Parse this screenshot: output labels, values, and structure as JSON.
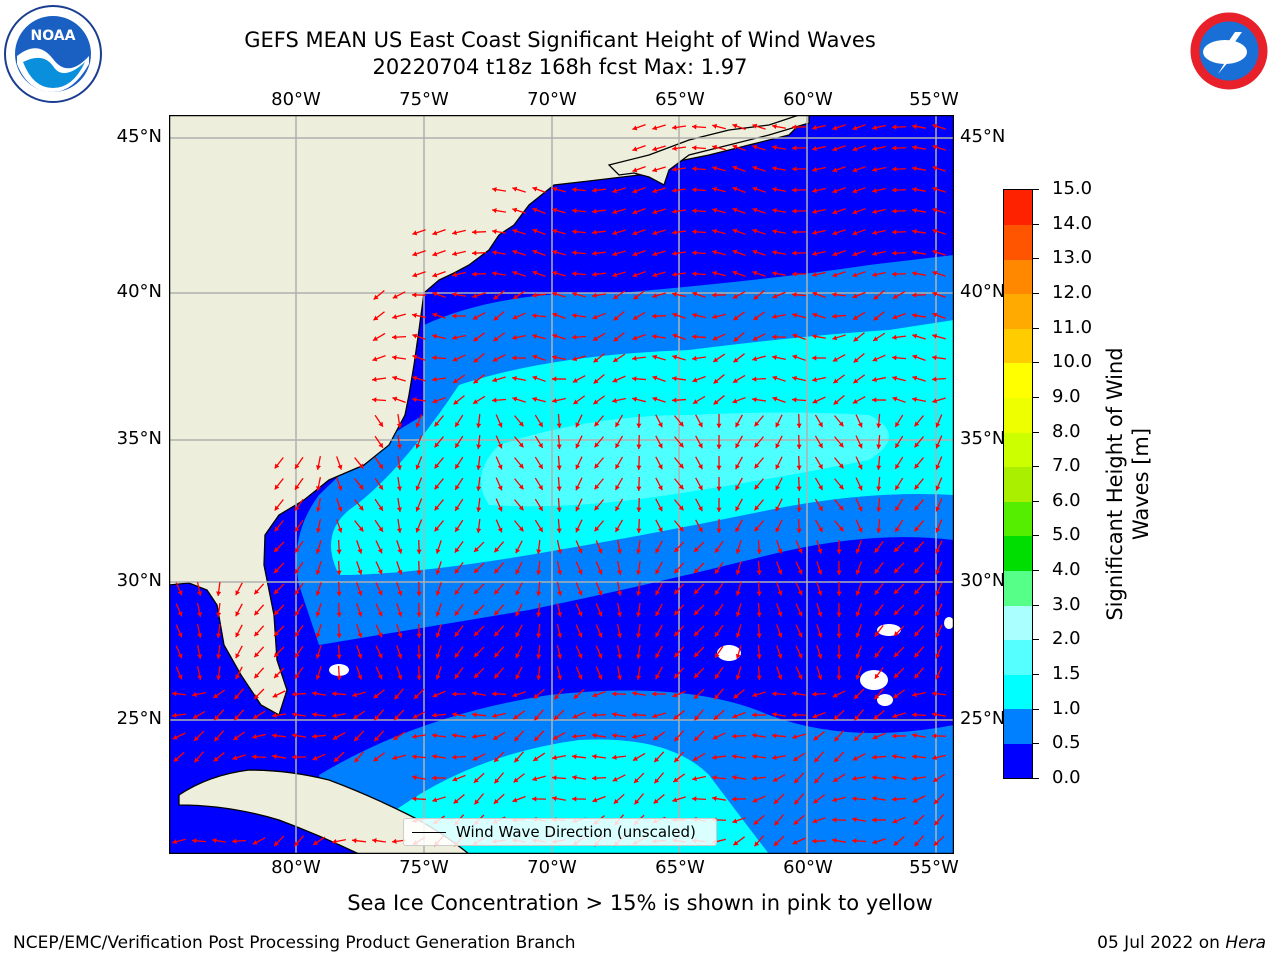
{
  "title_line1": "GEFS MEAN US East Coast Significant Height of Wind Waves",
  "title_line2": "20220704 t18z 168h fcst   Max: 1.97",
  "subtitle": "Sea Ice Concentration > 15% is shown in pink to yellow",
  "footer_left": "NCEP/EMC/Verification Post Processing Product Generation Branch",
  "footer_date": "05 Jul 2022 on ",
  "footer_machine": "Hera",
  "legend_label": "Wind Wave Direction (unscaled)",
  "colorbar_label": "Significant Height of Wind Waves [m]",
  "lon_labels": [
    "80°W",
    "75°W",
    "70°W",
    "65°W",
    "60°W",
    "55°W"
  ],
  "lat_labels": [
    "45°N",
    "40°N",
    "35°N",
    "30°N",
    "25°N"
  ],
  "colorbar_ticks": [
    "0.0",
    "0.5",
    "1.0",
    "1.5",
    "2.0",
    "3.0",
    "4.0",
    "5.0",
    "6.0",
    "7.0",
    "8.0",
    "9.0",
    "10.0",
    "11.0",
    "12.0",
    "13.0",
    "14.0",
    "15.0"
  ],
  "colorbar_colors": [
    "#0000ff",
    "#0080ff",
    "#00ffff",
    "#55ffff",
    "#aaffff",
    "#55ff88",
    "#00dd00",
    "#55ee00",
    "#aaee00",
    "#ccff00",
    "#eeff00",
    "#ffff00",
    "#ffcc00",
    "#ffaa00",
    "#ff8800",
    "#ff5500",
    "#ff2200"
  ],
  "colors": {
    "land": "#eeeedc",
    "ocean_low": "#0000ff",
    "ocean_mid": "#0080ff",
    "ocean_high": "#00ffff",
    "ocean_peak": "#55ffff",
    "arrow": "#ff0000",
    "grid": "#b0b0b0"
  },
  "logos": {
    "left": "NOAA",
    "right_text": "NATIONAL WEATHER SERVICE"
  }
}
